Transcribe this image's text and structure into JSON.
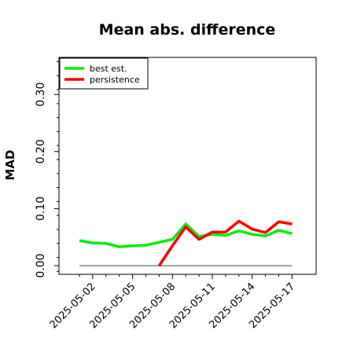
{
  "chart_data": {
    "type": "line",
    "title": "Mean abs. difference",
    "xlabel": "",
    "ylabel": "MAD",
    "x": [
      "2025-05-01",
      "2025-05-02",
      "2025-05-03",
      "2025-05-04",
      "2025-05-05",
      "2025-05-06",
      "2025-05-07",
      "2025-05-08",
      "2025-05-09",
      "2025-05-10",
      "2025-05-11",
      "2025-05-12",
      "2025-05-13",
      "2025-05-14",
      "2025-05-15",
      "2025-05-16",
      "2025-05-17"
    ],
    "x_ticks": [
      "2025-05-02",
      "2025-05-05",
      "2025-05-08",
      "2025-05-11",
      "2025-05-14",
      "2025-05-17"
    ],
    "y_ticks": [
      0.0,
      0.1,
      0.2,
      0.3
    ],
    "y_tick_labels": [
      "0.00",
      "0.10",
      "0.20",
      "0.30"
    ],
    "ylim": [
      -0.01,
      0.365
    ],
    "legend_position": "top-left",
    "grid": false,
    "series": [
      {
        "name": "best est.",
        "color": "#00ee00",
        "values": [
          0.044,
          0.04,
          0.039,
          0.033,
          0.035,
          0.036,
          0.041,
          0.046,
          0.073,
          0.051,
          0.055,
          0.053,
          0.061,
          0.055,
          0.052,
          0.062,
          0.056
        ]
      },
      {
        "name": "persistence",
        "color": "#ff0000",
        "values": [
          null,
          null,
          null,
          null,
          null,
          null,
          0.0,
          0.035,
          0.068,
          0.046,
          0.059,
          0.059,
          0.078,
          0.064,
          0.058,
          0.077,
          0.073
        ]
      }
    ],
    "reference_line": {
      "value": 0.0,
      "color": "#808080"
    }
  }
}
